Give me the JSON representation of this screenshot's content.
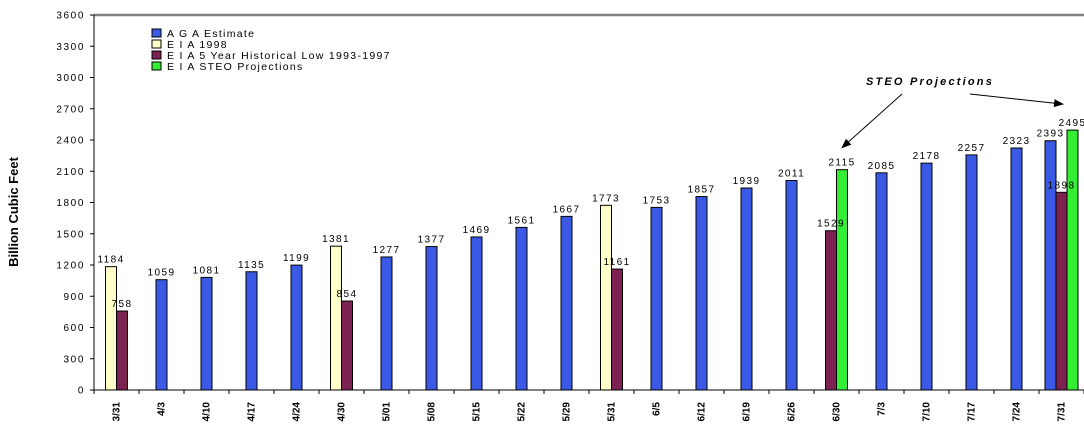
{
  "chart_data": {
    "type": "bar",
    "ylabel": "Billion Cubic Feet",
    "ylim": [
      0,
      3600
    ],
    "yticks": [
      0,
      300,
      600,
      900,
      1200,
      1500,
      1800,
      2100,
      2400,
      2700,
      3000,
      3300,
      3600
    ],
    "categories": [
      "3/31",
      "4/3",
      "4/10",
      "4/17",
      "4/24",
      "4/30",
      "5/01",
      "5/08",
      "5/15",
      "5/22",
      "5/29",
      "5/31",
      "6/5",
      "6/12",
      "6/19",
      "6/26",
      "6/30",
      "7/3",
      "7/10",
      "7/17",
      "7/24",
      "7/31"
    ],
    "series": [
      {
        "name": "A G A  Estimate",
        "color": "#3a5ae6",
        "values": [
          null,
          1059,
          1081,
          1135,
          1199,
          null,
          1277,
          1377,
          1469,
          1561,
          1667,
          null,
          1753,
          1857,
          1939,
          2011,
          null,
          2085,
          2178,
          2257,
          2323,
          2393
        ]
      },
      {
        "name": "E I A  1998",
        "color": "#ffffc8",
        "values": [
          1184,
          null,
          null,
          null,
          null,
          1381,
          null,
          null,
          null,
          null,
          null,
          1773,
          null,
          null,
          null,
          null,
          null,
          null,
          null,
          null,
          null,
          null
        ]
      },
      {
        "name": "E I A  5  Year Historical Low 1993-1997",
        "color": "#7b2250",
        "values": [
          758,
          null,
          null,
          null,
          null,
          854,
          null,
          null,
          null,
          null,
          null,
          1161,
          null,
          null,
          null,
          null,
          1529,
          null,
          null,
          null,
          null,
          1898
        ]
      },
      {
        "name": "E I A  STEO  Projections",
        "color": "#33ee33",
        "values": [
          null,
          null,
          null,
          null,
          null,
          null,
          null,
          null,
          null,
          null,
          null,
          null,
          null,
          null,
          null,
          null,
          2115,
          null,
          null,
          null,
          null,
          2495
        ]
      }
    ],
    "labels": [
      {
        "text": "1184",
        "cat": 0,
        "y": 1184
      },
      {
        "text": "758",
        "cat": 0,
        "y": 758
      },
      {
        "text": "1059",
        "cat": 1,
        "y": 1059
      },
      {
        "text": "1081",
        "cat": 2,
        "y": 1081
      },
      {
        "text": "1135",
        "cat": 3,
        "y": 1135
      },
      {
        "text": "1199",
        "cat": 4,
        "y": 1199
      },
      {
        "text": "1381",
        "cat": 5,
        "y": 1381
      },
      {
        "text": "854",
        "cat": 5,
        "y": 854
      },
      {
        "text": "1277",
        "cat": 6,
        "y": 1277
      },
      {
        "text": "1377",
        "cat": 7,
        "y": 1377
      },
      {
        "text": "1469",
        "cat": 8,
        "y": 1469
      },
      {
        "text": "1561",
        "cat": 9,
        "y": 1561
      },
      {
        "text": "1667",
        "cat": 10,
        "y": 1667
      },
      {
        "text": "1773",
        "cat": 11,
        "y": 1773
      },
      {
        "text": "1161",
        "cat": 11,
        "y": 1161
      },
      {
        "text": "1753",
        "cat": 12,
        "y": 1753
      },
      {
        "text": "1857",
        "cat": 13,
        "y": 1857
      },
      {
        "text": "1939",
        "cat": 14,
        "y": 1939
      },
      {
        "text": "2011",
        "cat": 15,
        "y": 2011
      },
      {
        "text": "1529",
        "cat": 16,
        "y": 1529
      },
      {
        "text": "2115",
        "cat": 16,
        "y": 2115
      },
      {
        "text": "2085",
        "cat": 17,
        "y": 2085
      },
      {
        "text": "2178",
        "cat": 18,
        "y": 2178
      },
      {
        "text": "2257",
        "cat": 19,
        "y": 2257
      },
      {
        "text": "2323",
        "cat": 20,
        "y": 2323
      },
      {
        "text": "2393",
        "cat": 21,
        "y": 2393
      },
      {
        "text": "1898",
        "cat": 21,
        "y": 1898
      },
      {
        "text": "2495",
        "cat": 21,
        "y": 2495
      }
    ],
    "annotation": {
      "text": "STEO Projections",
      "targets": [
        16,
        21
      ]
    },
    "legend": {
      "position": "top-left"
    },
    "grid": false
  }
}
